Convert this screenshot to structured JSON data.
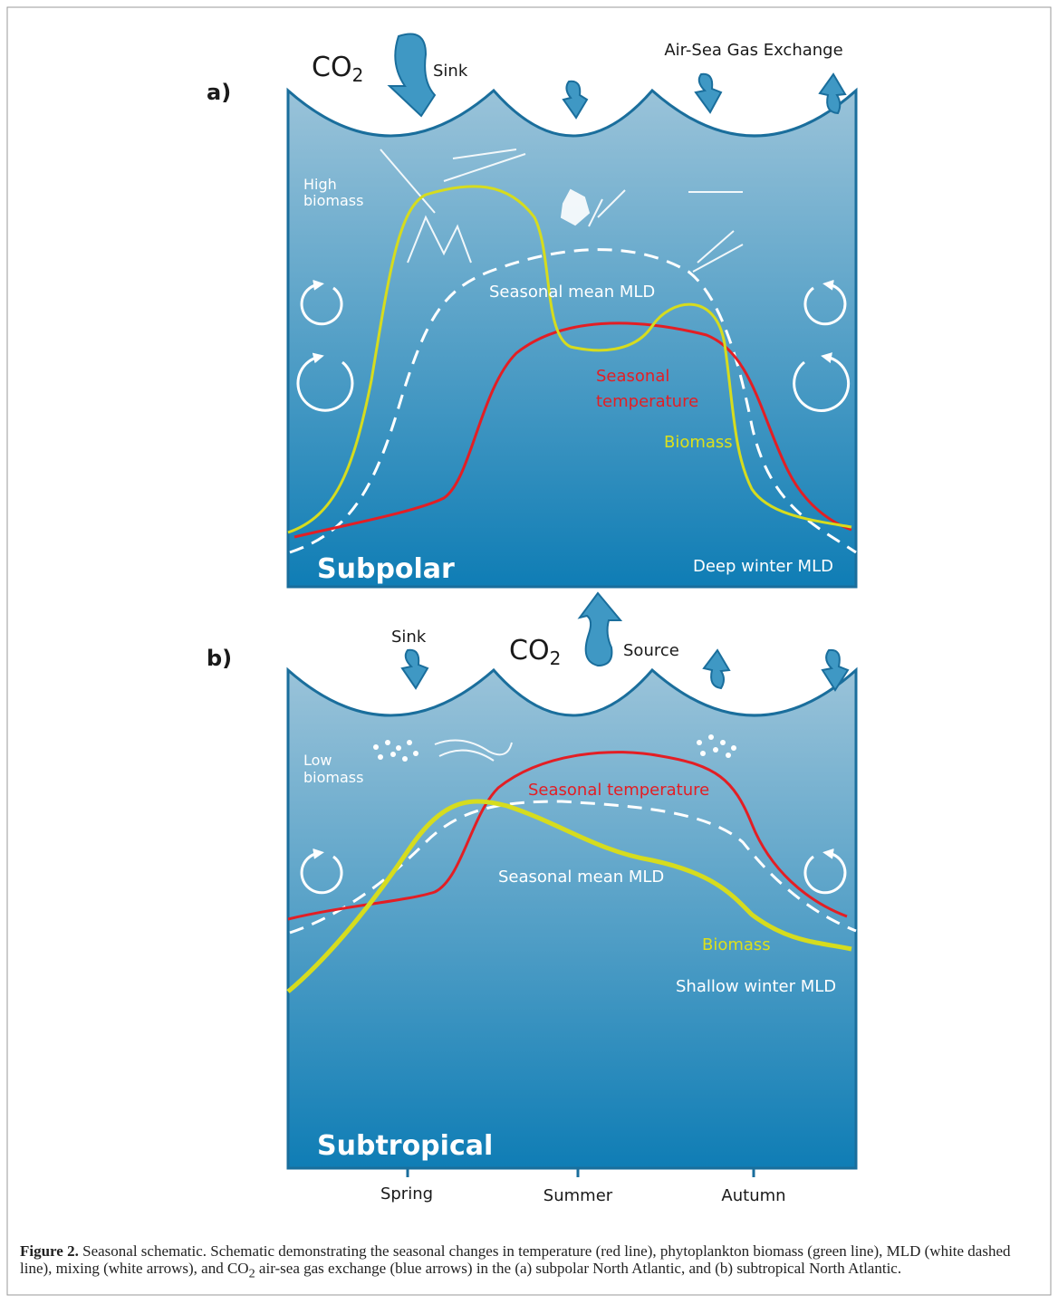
{
  "panel_a": {
    "label": "a)",
    "co2": {
      "main": "CO",
      "sub": "2"
    },
    "sink": "Sink",
    "exchange": "Air-Sea Gas Exchange",
    "biomass_note": [
      "High",
      "biomass"
    ],
    "mld": "Seasonal mean MLD",
    "temperature": [
      "Seasonal",
      "temperature"
    ],
    "biomass": "Biomass",
    "region": "Subpolar",
    "winter_mld": "Deep winter MLD"
  },
  "panel_b": {
    "label": "b)",
    "sink": "Sink",
    "co2": {
      "main": "CO",
      "sub": "2"
    },
    "source": "Source",
    "biomass_note": [
      "Low",
      "biomass"
    ],
    "temperature": "Seasonal temperature",
    "mld": "Seasonal mean MLD",
    "biomass": "Biomass",
    "winter_mld": "Shallow winter MLD",
    "region": "Subtropical"
  },
  "seasons": [
    "Spring",
    "Summer",
    "Autumn"
  ],
  "caption": {
    "label": "Figure 2.",
    "text_before": " Seasonal schematic. Schematic demonstrating the seasonal changes in temperature (red line), phytoplankton biomass (green line), MLD (white dashed line), mixing (white arrows), and CO",
    "sub": "2",
    "text_after": " air-sea gas exchange (blue arrows) in the (a) subpolar North Atlantic, and (b) subtropical North Atlantic."
  }
}
